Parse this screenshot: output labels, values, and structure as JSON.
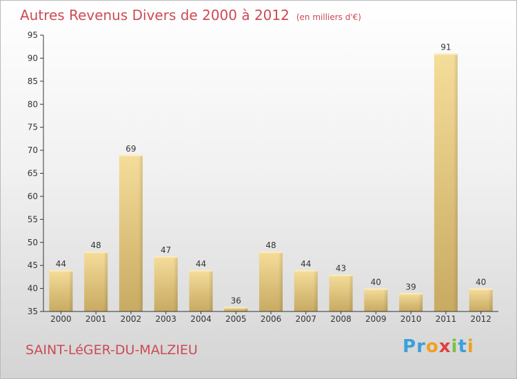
{
  "title": "Autres Revenus Divers de 2000 à 2012",
  "subtitle": "(en milliers d'€)",
  "town": "SAINT-LéGER-DU-MALZIEU",
  "logo": {
    "text": "Proxiti",
    "letters": [
      "P",
      "r",
      "o",
      "x",
      "i",
      "t",
      "i"
    ]
  },
  "colors": {
    "title": "#cc4a55",
    "bar_light": "#f5dd9a",
    "bar_dark": "#c8aa62",
    "axis": "#333333"
  },
  "chart_data": {
    "type": "bar",
    "categories": [
      "2000",
      "2001",
      "2002",
      "2003",
      "2004",
      "2005",
      "2006",
      "2007",
      "2008",
      "2009",
      "2010",
      "2011",
      "2012"
    ],
    "values": [
      44,
      48,
      69,
      47,
      44,
      36,
      48,
      44,
      43,
      40,
      39,
      91,
      40
    ],
    "data_labels": [
      "44",
      "48",
      "69",
      "47",
      "44",
      "36",
      "48",
      "44",
      "43",
      "40",
      "39",
      "91",
      "40"
    ],
    "ylim": [
      35,
      95
    ],
    "yticks": [
      35,
      40,
      45,
      50,
      55,
      60,
      65,
      70,
      75,
      80,
      85,
      90,
      95
    ],
    "ytick_labels": [
      "35",
      "40",
      "45",
      "50",
      "55",
      "60",
      "65",
      "70",
      "75",
      "80",
      "85",
      "90",
      "95"
    ],
    "grid": false,
    "legend": "none"
  }
}
